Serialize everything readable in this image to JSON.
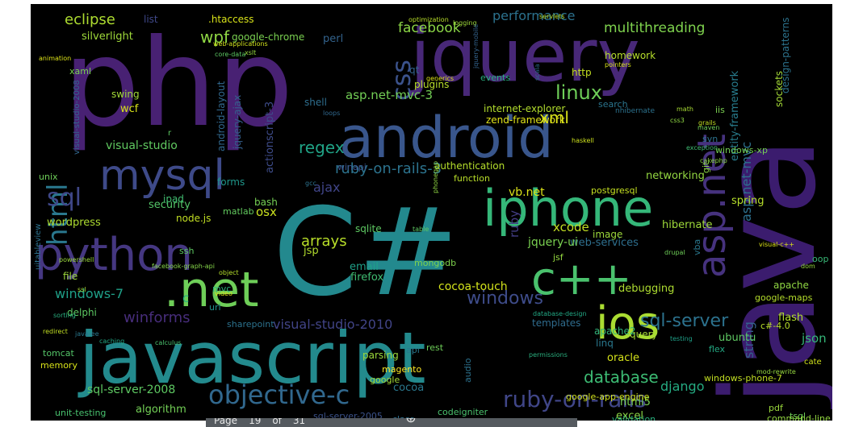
{
  "wordcloud": {
    "background": "#000000",
    "palette": [
      "#440154",
      "#482878",
      "#3e4989",
      "#31688e",
      "#26828e",
      "#1f9e89",
      "#35b779",
      "#6ece58",
      "#b5de2b",
      "#fde725"
    ],
    "words": [
      {
        "text": "php",
        "color": "#482173"
      },
      {
        "text": "java",
        "color": "#3b1c6e"
      },
      {
        "text": "javascript",
        "color": "#238a8d"
      },
      {
        "text": "C#",
        "color": "#23898e"
      },
      {
        "text": "jquery",
        "color": "#482878"
      },
      {
        "text": "android",
        "color": "#39568c"
      },
      {
        "text": "iphone",
        "color": "#35b779"
      },
      {
        "text": "python",
        "color": "#453781"
      },
      {
        "text": ".net",
        "color": "#6ece58"
      },
      {
        "text": "c++",
        "color": "#4ac16d"
      },
      {
        "text": "ios",
        "color": "#aadc32"
      },
      {
        "text": "mysql",
        "color": "#3e4a89"
      },
      {
        "text": "asp.net",
        "color": "#46327e"
      },
      {
        "text": "html",
        "color": "#2a788e"
      },
      {
        "text": "objective-c",
        "color": "#31688e"
      },
      {
        "text": "sql",
        "color": "#3f4788"
      },
      {
        "text": "css",
        "color": "#3b528b"
      },
      {
        "text": "ruby-on-rails",
        "color": "#404688"
      },
      {
        "text": "windows",
        "color": "#3e4c8a"
      },
      {
        "text": "linux",
        "color": "#6ece58"
      },
      {
        "text": "sql-server",
        "color": "#2c728e"
      },
      {
        "text": "xml",
        "color": "#d8e219"
      },
      {
        "text": "wpf",
        "color": "#8fd744"
      },
      {
        "text": "database",
        "color": "#3dbc74"
      },
      {
        "text": "eclipse",
        "color": "#addc30"
      },
      {
        "text": "regex",
        "color": "#20a386"
      },
      {
        "text": "arrays",
        "color": "#b8de29"
      },
      {
        "text": "winforms",
        "color": "#472d7b"
      },
      {
        "text": "ruby-on-rails-3",
        "color": "#2c738e"
      },
      {
        "text": "facebook",
        "color": "#8bd646"
      },
      {
        "text": "performance",
        "color": "#2c728e"
      },
      {
        "text": "multithreading",
        "color": "#7fd34e"
      },
      {
        "text": "visual-studio-2010",
        "color": "#414487"
      },
      {
        "text": "django",
        "color": "#25ab82"
      },
      {
        "text": "sql-server-2008",
        "color": "#5ec962"
      },
      {
        "text": "ajax",
        "color": "#404588"
      },
      {
        "text": "json",
        "color": "#35b779"
      },
      {
        "text": "xcode",
        "color": "#c2df23"
      },
      {
        "text": "string",
        "color": "#34618d"
      },
      {
        "text": "asp.net-mvc",
        "color": "#2d708e"
      },
      {
        "text": "entity-framework",
        "color": "#287d8e"
      },
      {
        "text": "asp.net-mvc-3",
        "color": "#73d056"
      },
      {
        "text": "windows-7",
        "color": "#1fa088"
      },
      {
        "text": "visual-studio",
        "color": "#60ca60"
      },
      {
        "text": "cocoa-touch",
        "color": "#d2e21b"
      },
      {
        "text": "wordpress",
        "color": "#addc30"
      },
      {
        "text": "security",
        "color": "#54c568"
      },
      {
        "text": "silverlight",
        "color": "#9fda3a"
      },
      {
        "text": "html5",
        "color": "#7ad151"
      },
      {
        "text": "algorithm",
        "color": "#73d056"
      },
      {
        "text": "hibernate",
        "color": "#9fda3a"
      },
      {
        "text": "homework",
        "color": "#b5de2b"
      },
      {
        "text": "sharepoint",
        "color": "#2c728e"
      },
      {
        "text": "unit-testing",
        "color": "#48c16e"
      },
      {
        "text": "excel",
        "color": "#8bd646"
      },
      {
        "text": "codeigniter",
        "color": "#4ac16d"
      },
      {
        "text": "cocoa",
        "color": "#2a788e"
      },
      {
        "text": "magento",
        "color": "#fde725"
      },
      {
        "text": "google",
        "color": "#a2da37"
      },
      {
        "text": "parsing",
        "color": "#9bd93c"
      },
      {
        "text": "oracle",
        "color": "#d5e21a"
      },
      {
        "text": "api",
        "color": "#2a788e"
      },
      {
        "text": "rest",
        "color": "#6ece58"
      },
      {
        "text": "query",
        "color": "#a5db36"
      },
      {
        "text": "ubuntu",
        "color": "#5ec962"
      },
      {
        "text": "flash",
        "color": "#b2dd2d"
      },
      {
        "text": "apache",
        "color": "#90d743"
      },
      {
        "text": "apache2",
        "color": "#33b67a"
      },
      {
        "text": "spring",
        "color": "#b5de2b"
      },
      {
        "text": "debugging",
        "color": "#addc30"
      },
      {
        "text": "google-maps",
        "color": "#b5de2b"
      },
      {
        "text": "web-services",
        "color": "#2e6f8e"
      },
      {
        "text": "image",
        "color": "#9dd93b"
      },
      {
        "text": "sqlite",
        "color": "#5ec962"
      },
      {
        "text": "jquery-ui",
        "color": "#7ad151"
      },
      {
        "text": "jsp",
        "color": "#b2dd2d"
      },
      {
        "text": "email",
        "color": "#1fa088"
      },
      {
        "text": "firefox",
        "color": "#40bd72"
      },
      {
        "text": "mongodb",
        "color": "#7fd34e"
      },
      {
        "text": "ruby",
        "color": "#433e85"
      },
      {
        "text": "osx",
        "color": "#cae11f"
      },
      {
        "text": "bash",
        "color": "#75d054"
      },
      {
        "text": "forms",
        "color": "#1f978b"
      },
      {
        "text": "matlab",
        "color": "#63cb5f"
      },
      {
        "text": "node.js",
        "color": "#c2df23"
      },
      {
        "text": "ipad",
        "color": "#42be71"
      },
      {
        "text": "file",
        "color": "#9dd93b"
      },
      {
        "text": "delphi",
        "color": "#5cc863"
      },
      {
        "text": "url",
        "color": "#21918c"
      },
      {
        "text": "mvc",
        "color": "#2fb47c"
      },
      {
        "text": "c",
        "color": "#2ab07f"
      },
      {
        "text": "tomcat",
        "color": "#54c568"
      },
      {
        "text": "memory",
        "color": "#d8e219"
      },
      {
        "text": "swing",
        "color": "#a2da37"
      },
      {
        "text": "wcf",
        "color": "#d8e219"
      },
      {
        "text": "unix",
        "color": "#6ece58"
      },
      {
        "text": "ssh",
        "color": "#5ec962"
      },
      {
        "text": "list",
        "color": "#3f4889"
      },
      {
        "text": ".htaccess",
        "color": "#d8e219"
      },
      {
        "text": "google-chrome",
        "color": "#7ad151"
      },
      {
        "text": "perl",
        "color": "#33638d"
      },
      {
        "text": "qt",
        "color": "#33638d"
      },
      {
        "text": "plugins",
        "color": "#b8de29"
      },
      {
        "text": "events",
        "color": "#29af7f"
      },
      {
        "text": "http",
        "color": "#c5e021"
      },
      {
        "text": "shell",
        "color": "#2e6e8e"
      },
      {
        "text": "internet-explorer",
        "color": "#b2dd2d"
      },
      {
        "text": "zend-framework",
        "color": "#e2e418"
      },
      {
        "text": "search",
        "color": "#2b758e"
      },
      {
        "text": "authentication",
        "color": "#b5de2b"
      },
      {
        "text": "function",
        "color": "#b8de29"
      },
      {
        "text": "vb.net",
        "color": "#dde318"
      },
      {
        "text": "networking",
        "color": "#93d741"
      },
      {
        "text": "postgresql",
        "color": "#c5e021"
      },
      {
        "text": "git",
        "color": "#8bd646"
      },
      {
        "text": "actionscript-3",
        "color": "#3e4c8a"
      },
      {
        "text": "android-layout",
        "color": "#31688e"
      },
      {
        "text": "jquery-ajax",
        "color": "#355f8d"
      },
      {
        "text": "winapi",
        "color": "#3b528b"
      },
      {
        "text": "windows-xp",
        "color": "#75d054"
      },
      {
        "text": "svn",
        "color": "#2c738e"
      },
      {
        "text": "iis",
        "color": "#7ad151"
      },
      {
        "text": "sockets",
        "color": "#a5db36"
      },
      {
        "text": "design-patterns",
        "color": "#2c738e"
      },
      {
        "text": "linq",
        "color": "#2a788e"
      },
      {
        "text": "templates",
        "color": "#2f6c8e"
      },
      {
        "text": "windows-phone-7",
        "color": "#c2df23"
      },
      {
        "text": "c#-4.0",
        "color": "#b8de29"
      },
      {
        "text": "tsql",
        "color": "#6ece58"
      },
      {
        "text": "pdf",
        "color": "#9bd93c"
      },
      {
        "text": "command-line",
        "color": "#93d741"
      },
      {
        "text": "google-app-engine",
        "color": "#d0e11c"
      },
      {
        "text": "validation",
        "color": "#2ab07f"
      },
      {
        "text": "sql-server-2005",
        "color": "#3b528b"
      },
      {
        "text": "class",
        "color": "#2e6f8e"
      },
      {
        "text": "xaml",
        "color": "#7ad151"
      },
      {
        "text": "visual-studio-2008",
        "color": "#31688e"
      },
      {
        "text": "uitableview",
        "color": "#2c728e"
      },
      {
        "text": "oop",
        "color": "#38b977"
      },
      {
        "text": "flex",
        "color": "#23a983"
      },
      {
        "text": "audio",
        "color": "#2c728e"
      },
      {
        "text": "r",
        "color": "#5ec962"
      },
      {
        "text": "cate",
        "color": "#d0e11c"
      },
      {
        "text": "vba",
        "color": "#2a788e"
      },
      {
        "text": "jsf",
        "color": "#95d840"
      },
      {
        "text": "dom",
        "color": "#95d840"
      },
      {
        "text": "sorting",
        "color": "#29af7f"
      },
      {
        "text": "caching",
        "color": "#22a884"
      },
      {
        "text": "calculus",
        "color": "#4ac16d"
      },
      {
        "text": "permissions",
        "color": "#2ab07f"
      },
      {
        "text": "mod-rewrite",
        "color": "#95d840"
      },
      {
        "text": "testing",
        "color": "#1fa088"
      },
      {
        "text": "optimization",
        "color": "#b8de29"
      },
      {
        "text": "logging",
        "color": "#9fda3a"
      },
      {
        "text": "servlets",
        "color": "#b8de29"
      },
      {
        "text": "web-applications",
        "color": "#d0e11c"
      },
      {
        "text": "xslt",
        "color": "#95d840"
      },
      {
        "text": "generics",
        "color": "#dde318"
      },
      {
        "text": "scala",
        "color": "#2e6e8e"
      },
      {
        "text": "pointers",
        "color": "#d8e219"
      },
      {
        "text": "nhibernate",
        "color": "#2c728e"
      },
      {
        "text": "math",
        "color": "#a8db34"
      },
      {
        "text": "grails",
        "color": "#c2df23"
      },
      {
        "text": "maven",
        "color": "#6ece58"
      },
      {
        "text": "exception",
        "color": "#3fbc73"
      },
      {
        "text": "cakephp",
        "color": "#8bd646"
      },
      {
        "text": "haskell",
        "color": "#cde11d"
      },
      {
        "text": "loops",
        "color": "#31688e"
      },
      {
        "text": "animation",
        "color": "#dde318"
      },
      {
        "text": "core-data",
        "color": "#5cc863"
      },
      {
        "text": "facebook-graph-api",
        "color": "#85d54a"
      },
      {
        "text": "powershell",
        "color": "#9bd93c"
      },
      {
        "text": "redirect",
        "color": "#c2df23"
      },
      {
        "text": "java-ee",
        "color": "#2a788e"
      },
      {
        "text": "ssl",
        "color": "#addc30"
      },
      {
        "text": "video",
        "color": "#e2e418"
      },
      {
        "text": "object",
        "color": "#b5de2b"
      },
      {
        "text": "table",
        "color": "#5ec962"
      },
      {
        "text": "database-design",
        "color": "#22a884"
      },
      {
        "text": "drupal",
        "color": "#6ece58"
      },
      {
        "text": "visual-c++",
        "color": "#dde318"
      },
      {
        "text": "phonegap",
        "color": "#90d743"
      },
      {
        "text": "gcc",
        "color": "#2c728e"
      },
      {
        "text": "jquery-mobile",
        "color": "#33638d"
      },
      {
        "text": "css3",
        "color": "#8fd744"
      }
    ]
  },
  "page_bar": {
    "text_a": "Page",
    "text_b": "19",
    "text_c": "of",
    "text_d": "31",
    "zoom_icon": "zoom-in-icon"
  }
}
